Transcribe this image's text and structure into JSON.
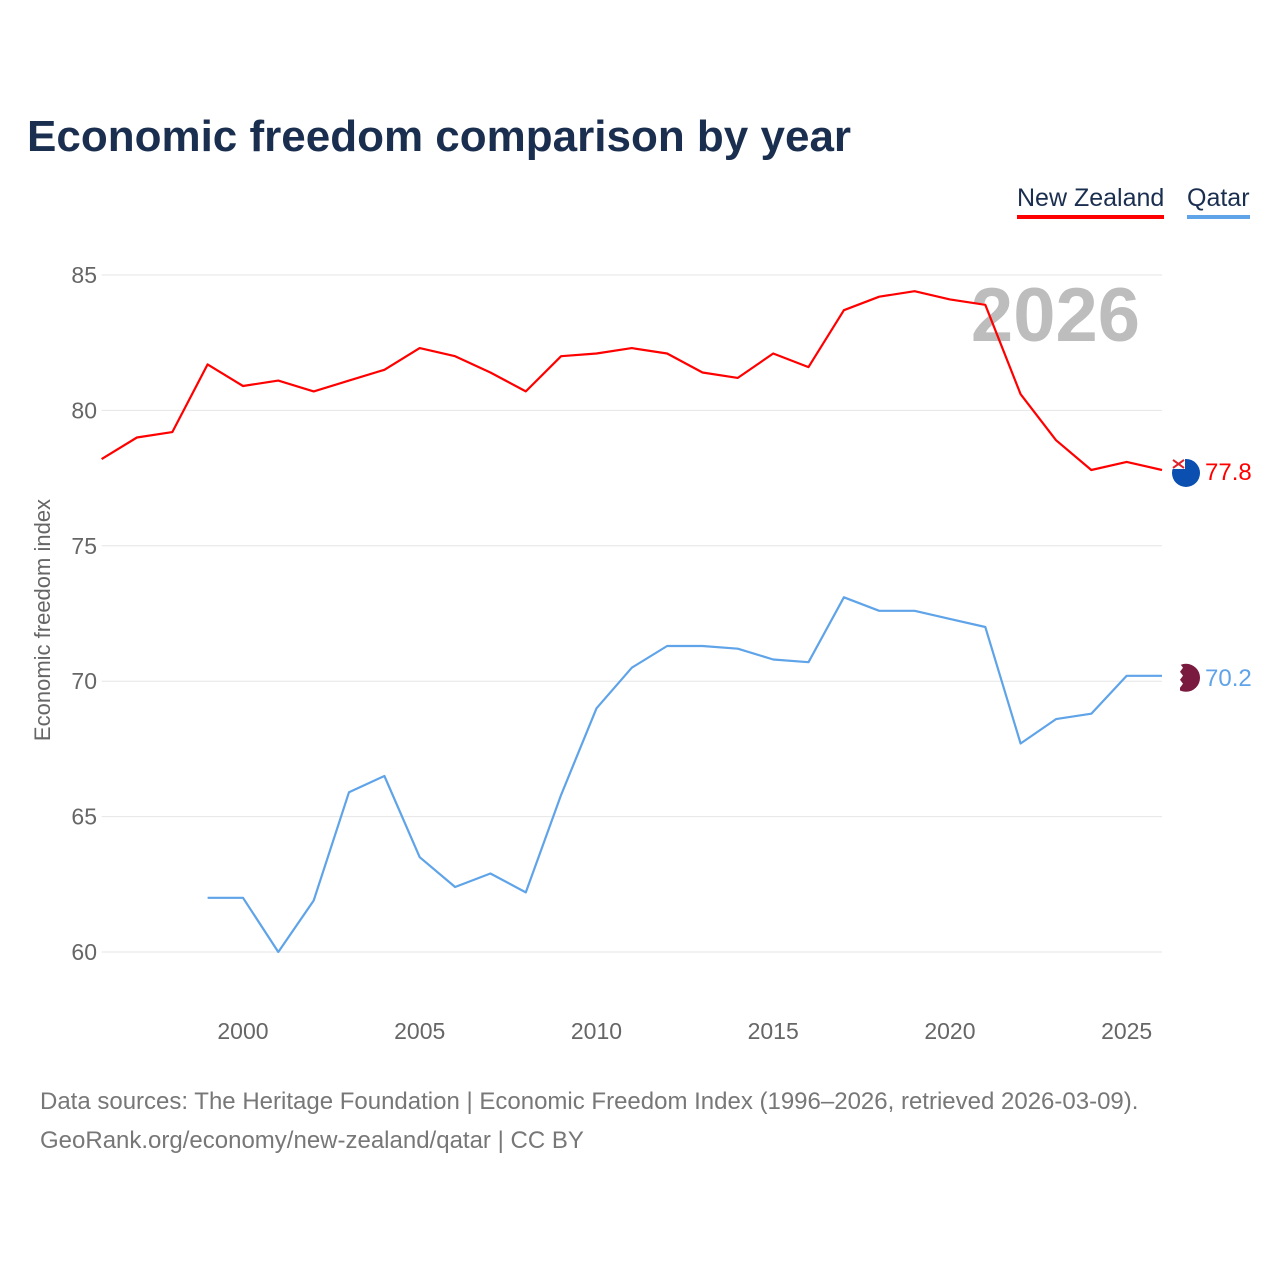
{
  "title": "Economic freedom comparison by year",
  "legend": [
    "New Zealand",
    "Qatar"
  ],
  "footer": {
    "line1": "Data sources: The Heritage Foundation | Economic Freedom Index (1996–2026, retrieved 2026-03-09).",
    "line2": "GeoRank.org/economy/new-zealand/qatar | CC BY"
  },
  "chart_data": {
    "type": "line",
    "title": "Economic freedom comparison by year",
    "xlabel": "",
    "ylabel": "Economic freedom index",
    "xlim": [
      1996,
      2026
    ],
    "ylim": [
      58,
      86
    ],
    "yticks": [
      60,
      65,
      70,
      75,
      80,
      85
    ],
    "xticks": [
      2000,
      2005,
      2010,
      2015,
      2020,
      2025
    ],
    "grid": true,
    "legend_placement": "top-right",
    "watermark_year": "2026",
    "series": [
      {
        "name": "New Zealand",
        "color": "#ff0000",
        "end_label": "77.8",
        "icon": "new-zealand-flag-icon",
        "x": [
          1996,
          1997,
          1998,
          1999,
          2000,
          2001,
          2002,
          2003,
          2004,
          2005,
          2006,
          2007,
          2008,
          2009,
          2010,
          2011,
          2012,
          2013,
          2014,
          2015,
          2016,
          2017,
          2018,
          2019,
          2020,
          2021,
          2022,
          2023,
          2024,
          2025,
          2026
        ],
        "values": [
          78.2,
          79.0,
          79.2,
          81.7,
          80.9,
          81.1,
          80.7,
          81.1,
          81.5,
          82.3,
          82.0,
          81.4,
          80.7,
          82.0,
          82.1,
          82.3,
          82.1,
          81.4,
          81.2,
          82.1,
          81.6,
          83.7,
          84.2,
          84.4,
          84.1,
          83.9,
          80.6,
          78.9,
          77.8,
          78.1,
          77.8
        ]
      },
      {
        "name": "Qatar",
        "color": "#5fa3e8",
        "end_label": "70.2",
        "icon": "qatar-flag-icon",
        "x": [
          1999,
          2000,
          2001,
          2002,
          2003,
          2004,
          2005,
          2006,
          2007,
          2008,
          2009,
          2010,
          2011,
          2012,
          2013,
          2014,
          2015,
          2016,
          2017,
          2018,
          2019,
          2020,
          2021,
          2022,
          2023,
          2024,
          2025,
          2026
        ],
        "values": [
          62.0,
          62.0,
          60.0,
          61.9,
          65.9,
          66.5,
          63.5,
          62.4,
          62.9,
          62.2,
          65.8,
          69.0,
          70.5,
          71.3,
          71.3,
          71.2,
          70.8,
          70.7,
          73.1,
          72.6,
          72.6,
          72.3,
          72.0,
          67.7,
          68.6,
          68.8,
          70.2,
          70.2
        ]
      }
    ]
  }
}
